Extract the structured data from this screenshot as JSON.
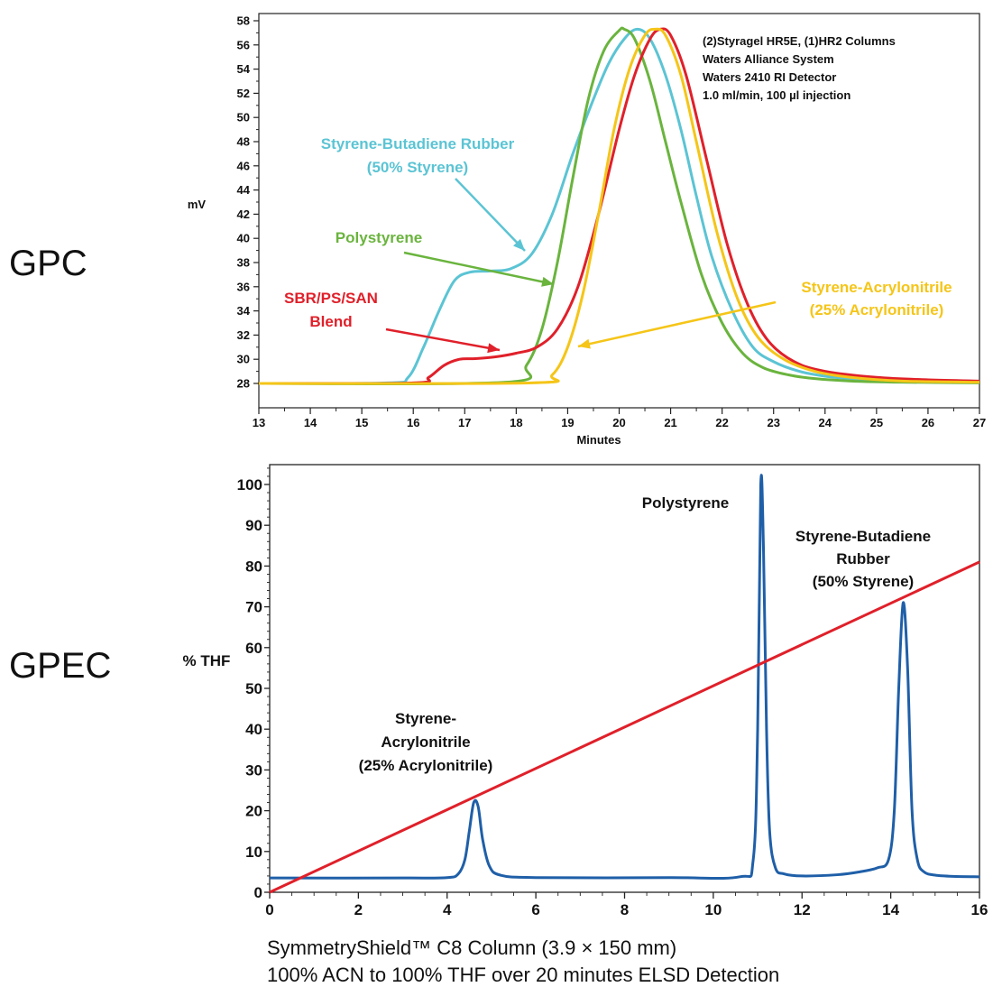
{
  "side_labels": {
    "gpc": "GPC",
    "gpec": "GPEC"
  },
  "footer": {
    "line1": "SymmetryShield™ C8 Column (3.9 × 150 mm)",
    "line2": "100% ACN to 100% THF over 20 minutes ELSD Detection"
  },
  "colors": {
    "sbr": "#5bc4d4",
    "polystyrene": "#6ab43e",
    "blend": "#e0202a",
    "san": "#f5c518",
    "gpec_trace": "#1f5fa8",
    "gpec_gradient": "#e0202a"
  },
  "chart_data": [
    {
      "type": "line",
      "title": "",
      "xlabel": "Minutes",
      "ylabel": "mV",
      "xlim": [
        13,
        27
      ],
      "ylim": [
        27,
        58
      ],
      "x_ticks": [
        "13",
        "14",
        "15",
        "16",
        "17",
        "18",
        "19",
        "20",
        "21",
        "22",
        "23",
        "24",
        "25",
        "26",
        "27"
      ],
      "y_ticks": [
        "28",
        "30",
        "32",
        "34",
        "36",
        "38",
        "40",
        "42",
        "44",
        "46",
        "48",
        "50",
        "52",
        "54",
        "56",
        "58"
      ],
      "notes": [
        "(2)Styragel HR5E, (1)HR2 Columns",
        "Waters Alliance System",
        "Waters 2410 RI Detector",
        "1.0 ml/min, 100 µl injection"
      ],
      "annotations": {
        "sbr": [
          "Styrene-Butadiene Rubber",
          "(50% Styrene)"
        ],
        "polystyrene": [
          "Polystyrene"
        ],
        "blend": [
          "SBR/PS/SAN",
          "Blend"
        ],
        "san": [
          "Styrene-Acrylonitrile",
          "(25% Acrylonitrile)"
        ]
      },
      "series": [
        {
          "key": "sbr",
          "x": [
            13,
            15.5,
            15.9,
            16.2,
            16.5,
            16.8,
            17.1,
            17.5,
            17.9,
            18.3,
            18.7,
            19.1,
            19.5,
            19.8,
            20.1,
            20.35,
            20.6,
            20.9,
            21.2,
            21.5,
            21.8,
            22.2,
            22.6,
            23.0,
            23.5,
            24.0,
            24.5,
            25.0,
            26.0,
            27.0
          ],
          "y": [
            28.0,
            28.05,
            28.5,
            31.0,
            34.0,
            36.5,
            37.2,
            37.3,
            37.5,
            38.7,
            42.0,
            47.0,
            51.5,
            54.5,
            56.5,
            57.3,
            56.5,
            53.5,
            49.0,
            43.5,
            38.5,
            34.0,
            31.0,
            29.8,
            29.0,
            28.6,
            28.4,
            28.3,
            28.15,
            28.1
          ]
        },
        {
          "key": "polystyrene",
          "x": [
            13,
            17.8,
            18.2,
            18.5,
            18.8,
            19.1,
            19.4,
            19.7,
            20.0,
            20.1,
            20.3,
            20.6,
            20.9,
            21.2,
            21.6,
            22.0,
            22.4,
            22.8,
            23.3,
            23.8,
            24.5,
            25.5,
            27.0
          ],
          "y": [
            28.0,
            28.1,
            29.5,
            32.5,
            38.0,
            45.0,
            51.5,
            55.5,
            57.2,
            57.3,
            56.5,
            53.0,
            48.0,
            43.0,
            37.0,
            33.0,
            30.5,
            29.3,
            28.7,
            28.4,
            28.2,
            28.1,
            28.05
          ]
        },
        {
          "key": "blend",
          "x": [
            13,
            16.0,
            16.3,
            16.6,
            16.9,
            17.2,
            17.6,
            18.0,
            18.4,
            18.8,
            19.2,
            19.6,
            20.0,
            20.3,
            20.6,
            20.8,
            21.0,
            21.3,
            21.7,
            22.1,
            22.5,
            22.9,
            23.4,
            24.0,
            25.0,
            26.0,
            27.0
          ],
          "y": [
            28.0,
            28.05,
            28.5,
            29.5,
            30.0,
            30.05,
            30.2,
            30.5,
            31.0,
            32.5,
            36.0,
            42.0,
            49.0,
            53.5,
            56.5,
            57.3,
            56.8,
            53.5,
            46.5,
            39.5,
            34.5,
            31.5,
            29.8,
            29.0,
            28.5,
            28.3,
            28.2
          ]
        },
        {
          "key": "san",
          "x": [
            13,
            18.3,
            18.7,
            19.0,
            19.3,
            19.6,
            19.9,
            20.2,
            20.5,
            20.7,
            20.9,
            21.2,
            21.5,
            21.9,
            22.3,
            22.7,
            23.2,
            23.8,
            24.5,
            25.5,
            27.0
          ],
          "y": [
            28.0,
            28.05,
            28.7,
            31.0,
            35.5,
            42.0,
            49.0,
            54.0,
            56.8,
            57.3,
            56.8,
            53.5,
            48.0,
            40.5,
            35.0,
            31.8,
            30.0,
            29.0,
            28.5,
            28.2,
            28.1
          ]
        }
      ]
    },
    {
      "type": "line",
      "title": "",
      "xlabel": "",
      "ylabel": "% THF",
      "xlim": [
        0,
        16
      ],
      "ylim": [
        0,
        105
      ],
      "x_ticks": [
        "0",
        "2",
        "4",
        "6",
        "8",
        "10",
        "12",
        "14",
        "16"
      ],
      "y_ticks": [
        "0",
        "10",
        "20",
        "30",
        "40",
        "50",
        "60",
        "70",
        "80",
        "90",
        "100"
      ],
      "annotations": {
        "san": [
          "Styrene-",
          "Acrylonitrile",
          "(25% Acrylonitrile)"
        ],
        "polystyrene": [
          "Polystyrene"
        ],
        "sbr": [
          "Styrene-Butadiene",
          "Rubber",
          "(50% Styrene)"
        ]
      },
      "series": [
        {
          "key": "gpec_trace",
          "x": [
            0,
            3.0,
            4.0,
            4.25,
            4.4,
            4.5,
            4.6,
            4.7,
            4.8,
            4.95,
            5.2,
            6.0,
            9.0,
            10.6,
            10.9,
            11.0,
            11.07,
            11.13,
            11.2,
            11.27,
            11.4,
            11.6,
            12.0,
            12.8,
            13.3,
            13.7,
            13.95,
            14.08,
            14.18,
            14.28,
            14.38,
            14.48,
            14.6,
            14.75,
            15.0,
            15.4,
            16.0
          ],
          "y": [
            3.5,
            3.5,
            3.6,
            4.5,
            8.0,
            15.0,
            22.0,
            21.0,
            13.0,
            6.5,
            4.2,
            3.6,
            3.6,
            3.8,
            8.0,
            40.0,
            100.0,
            85.0,
            40.0,
            15.0,
            6.0,
            4.5,
            4.0,
            4.3,
            5.0,
            6.0,
            8.0,
            20.0,
            50.0,
            71.0,
            55.0,
            20.0,
            8.0,
            5.0,
            4.2,
            3.9,
            3.8
          ]
        },
        {
          "key": "gpec_gradient",
          "x": [
            0,
            16
          ],
          "y": [
            0,
            81
          ]
        }
      ]
    }
  ]
}
